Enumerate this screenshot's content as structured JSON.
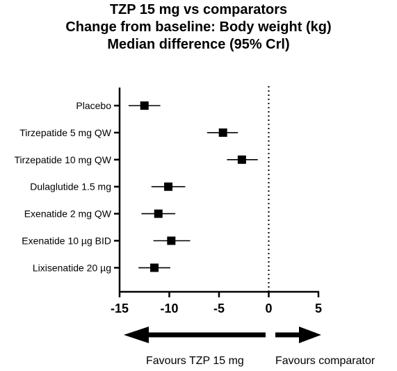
{
  "chart_data": {
    "type": "forest",
    "title": "TZP 15 mg vs comparators",
    "subtitle_lines": [
      "Change from baseline: Body weight (kg)",
      "Median difference (95% Crl)"
    ],
    "xlim": [
      -15,
      5
    ],
    "x_ticks": [
      -15,
      -10,
      -5,
      0,
      5
    ],
    "x_tick_labels": [
      "-15",
      "-10",
      "-5",
      "0",
      "5"
    ],
    "reference_line": 0,
    "grid": false,
    "rows": [
      {
        "label": "Placebo",
        "median": -12.5,
        "lower": -14.1,
        "upper": -10.9
      },
      {
        "label": "Tirzepatide 5 mg QW",
        "median": -4.6,
        "lower": -6.2,
        "upper": -3.1
      },
      {
        "label": "Tirzepatide 10 mg QW",
        "median": -2.7,
        "lower": -4.2,
        "upper": -1.1
      },
      {
        "label": "Dulaglutide 1.5 mg",
        "median": -10.1,
        "lower": -11.8,
        "upper": -8.4
      },
      {
        "label": "Exenatide 2 mg QW",
        "median": -11.1,
        "lower": -12.8,
        "upper": -9.4
      },
      {
        "label": "Exenatide 10 µg BID",
        "median": -9.8,
        "lower": -11.6,
        "upper": -7.9
      },
      {
        "label": "Lixisenatide 20 µg",
        "median": -11.5,
        "lower": -13.1,
        "upper": -9.9
      }
    ],
    "favours_left": "Favours TZP 15 mg",
    "favours_right": "Favours comparator"
  }
}
